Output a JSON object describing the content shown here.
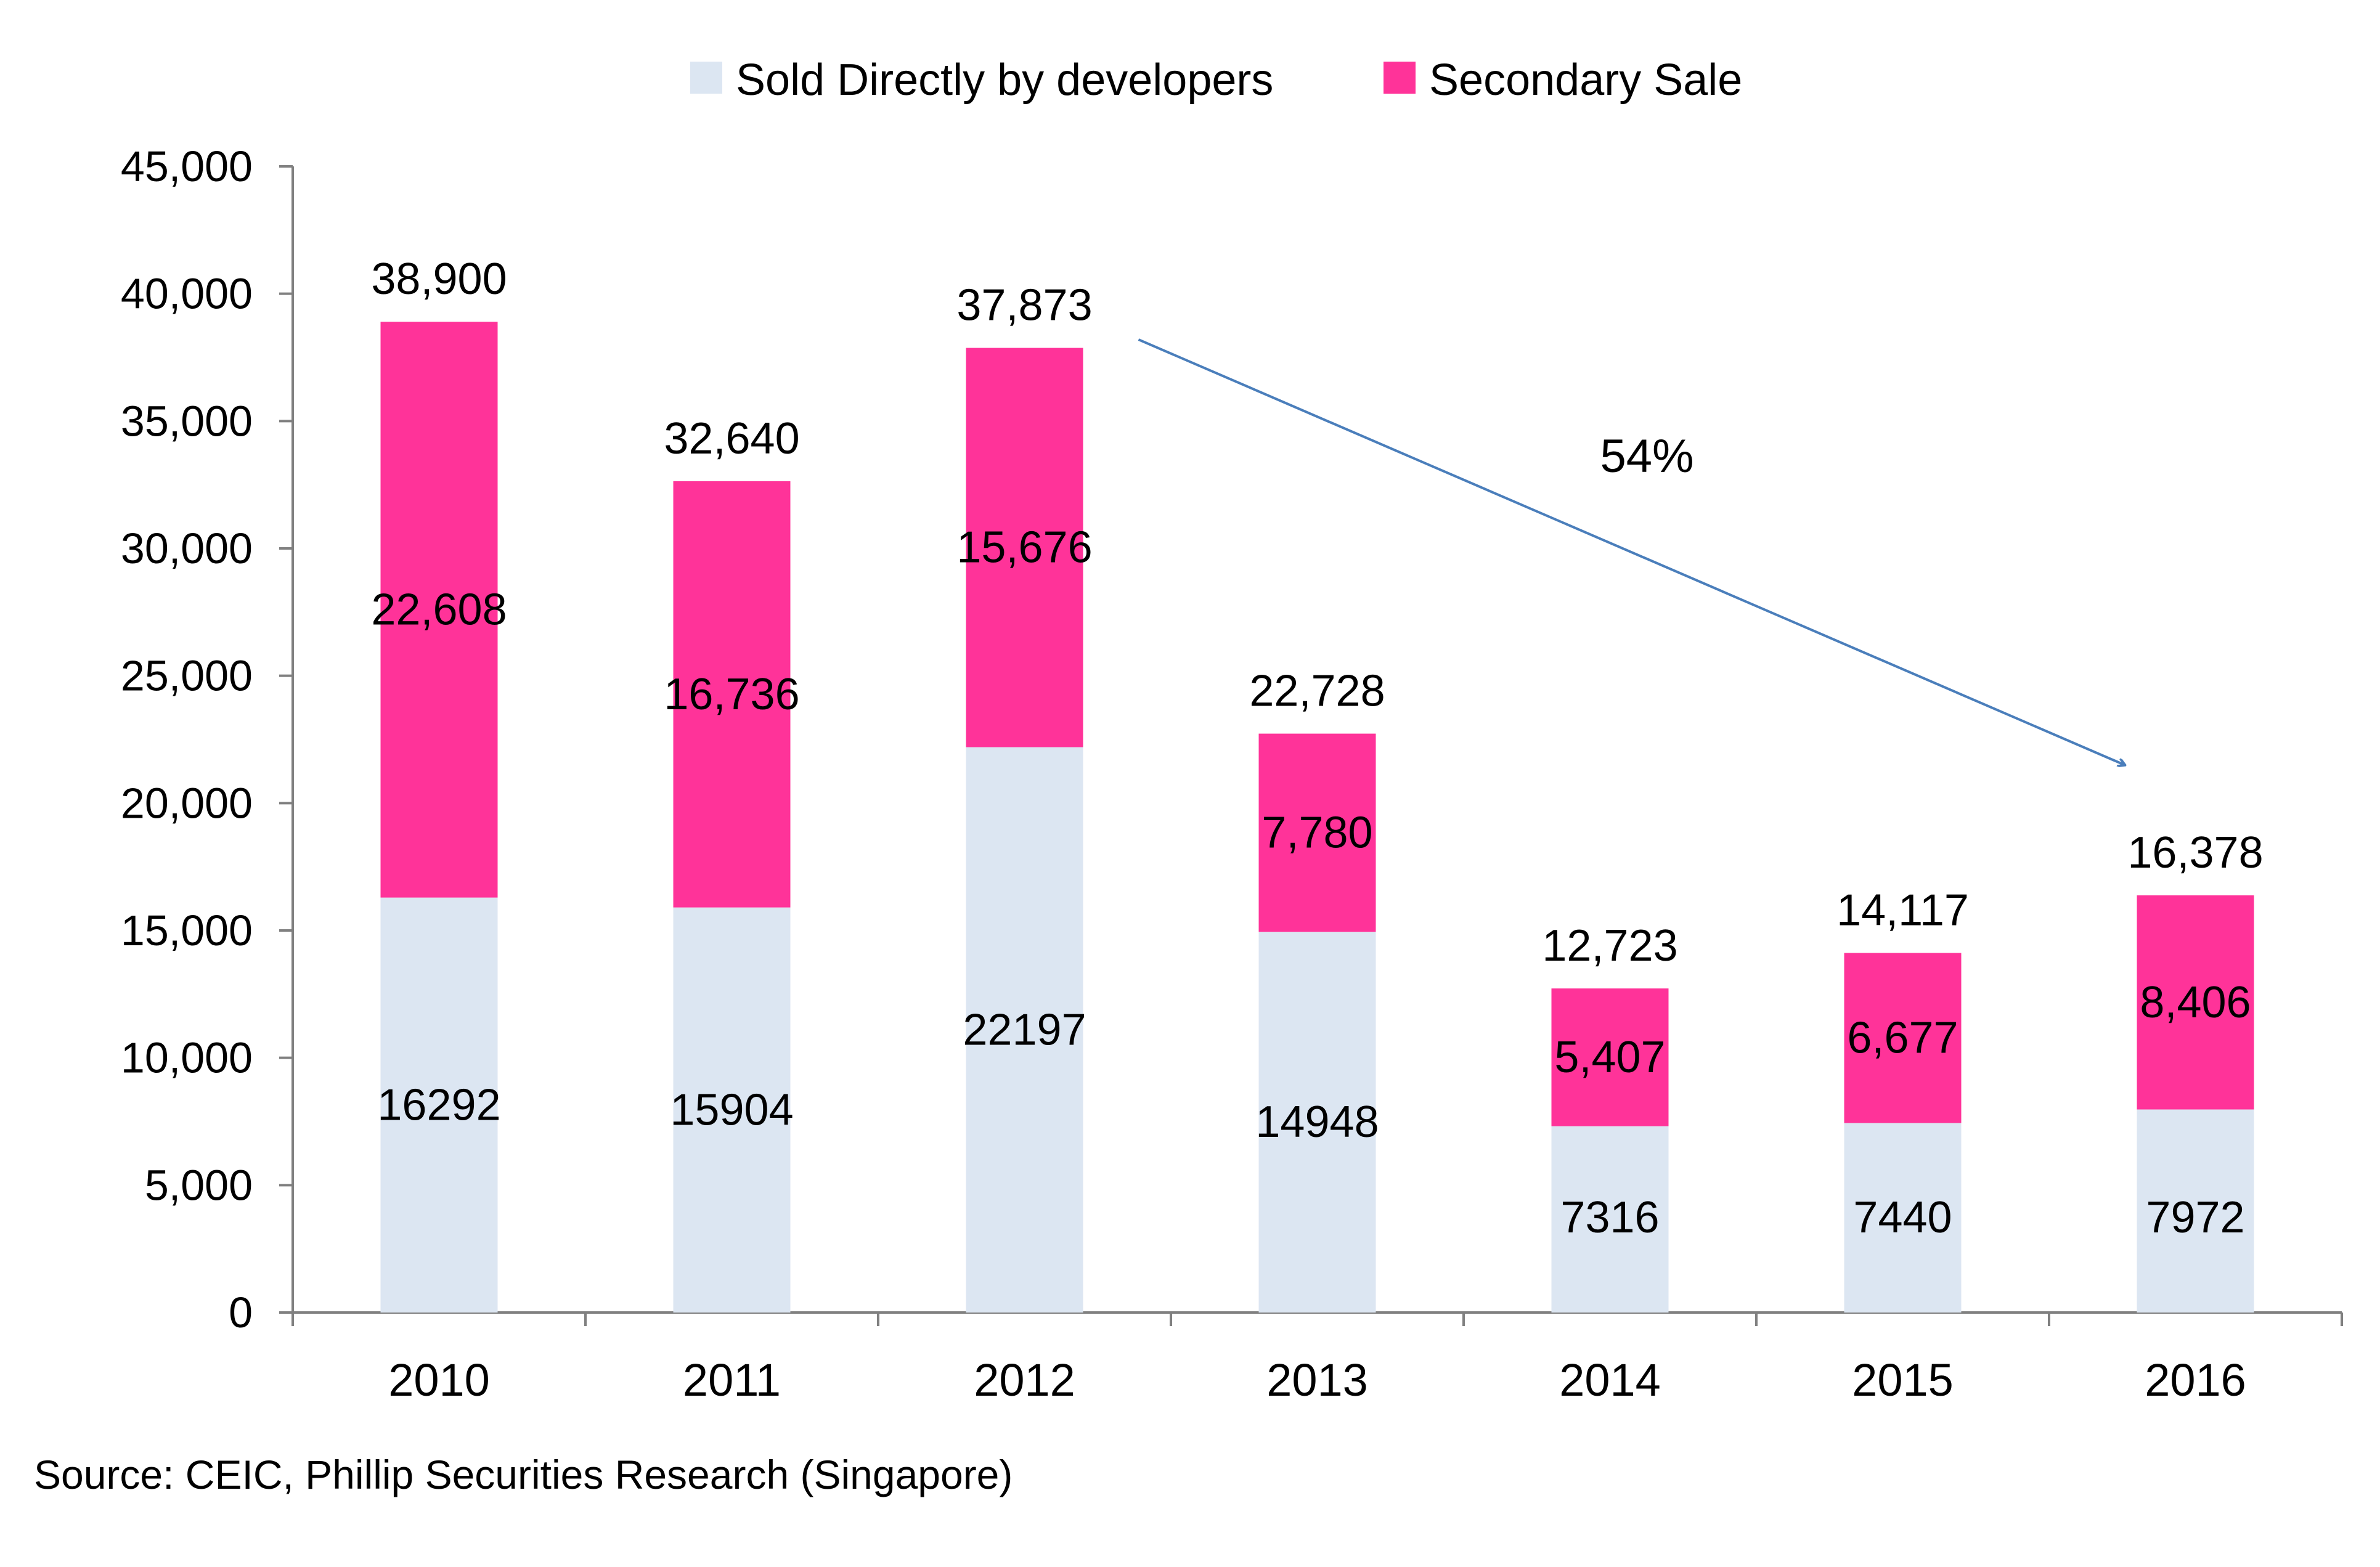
{
  "chart_data": {
    "type": "bar",
    "stacked": true,
    "categories": [
      "2010",
      "2011",
      "2012",
      "2013",
      "2014",
      "2015",
      "2016"
    ],
    "series": [
      {
        "name": "Sold Directly by developers",
        "color": "#dce6f2",
        "values": [
          16292,
          15904,
          22197,
          14948,
          7316,
          7440,
          7972
        ],
        "labels": [
          "16292",
          "15904",
          "22197",
          "14948",
          "7316",
          "7440",
          "7972"
        ]
      },
      {
        "name": "Secondary Sale",
        "color": "#ff3399",
        "values": [
          22608,
          16736,
          15676,
          7780,
          5407,
          6677,
          8406
        ],
        "labels": [
          "22,608",
          "16,736",
          "15,676",
          "7,780",
          "5,407",
          "6,677",
          "8,406"
        ]
      }
    ],
    "totals": [
      38900,
      32640,
      37873,
      22728,
      12723,
      14117,
      16378
    ],
    "total_labels": [
      "38,900",
      "32,640",
      "37,873",
      "22,728",
      "12,723",
      "14,117",
      "16,378"
    ],
    "ylim": [
      0,
      45000
    ],
    "yticks": [
      0,
      5000,
      10000,
      15000,
      20000,
      25000,
      30000,
      35000,
      40000,
      45000
    ],
    "ytick_labels": [
      "0",
      "5,000",
      "10,000",
      "15,000",
      "20,000",
      "25,000",
      "30,000",
      "35,000",
      "40,000",
      "45,000"
    ],
    "grid": false,
    "legend_position": "top",
    "annotation": {
      "text": "54%",
      "arrow_from": {
        "category": "2012",
        "value": 38200
      },
      "arrow_to": {
        "category": "2016",
        "value": 21500
      },
      "color": "#4a7ebb"
    }
  },
  "source": "Source: CEIC, Phillip Securities Research (Singapore)"
}
